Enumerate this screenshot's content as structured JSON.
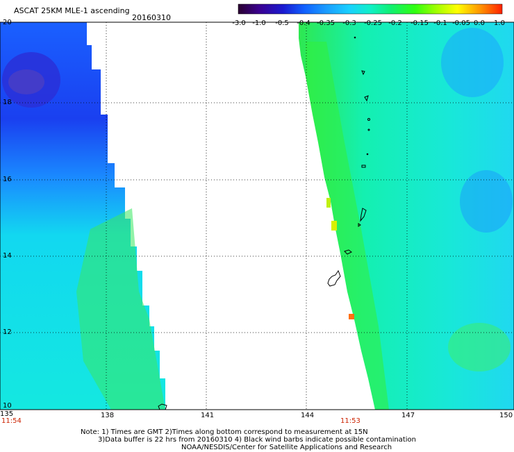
{
  "header": {
    "title": "ASCAT 25KM MLE-1 ascending",
    "date": "20160310"
  },
  "colorbar": {
    "labels": [
      "-3.0",
      "-1.0",
      "-0.5",
      "-0.4",
      "-0.35",
      "-0.3",
      "-0.25",
      "-0.2",
      "-0.15",
      "-0.1",
      "-0.05",
      "0.0",
      "1.0"
    ],
    "stops": [
      "#2a0030",
      "#3a0090",
      "#1a1ad0",
      "#1060ff",
      "#1a9aff",
      "#19d0ff",
      "#10f0c8",
      "#10f070",
      "#30ff10",
      "#a0ff00",
      "#ffff00",
      "#ff9000",
      "#ff2000"
    ]
  },
  "axes": {
    "lat_labels": [
      "20",
      "18",
      "16",
      "14",
      "12",
      "10"
    ],
    "lon_labels": [
      "135",
      "138",
      "141",
      "144",
      "147",
      "150"
    ]
  },
  "times": {
    "left": "11:54",
    "right": "11:53"
  },
  "notes": {
    "line1": "Note: 1) Times are GMT 2)Times along bottom correspond to measurement at 15N",
    "line2": "3)Data buffer is 22 hrs from 20160310 4) Black wind barbs indicate possible contamination",
    "line3": "NOAA/NESDIS/Center for Satellite Applications and Research"
  }
}
